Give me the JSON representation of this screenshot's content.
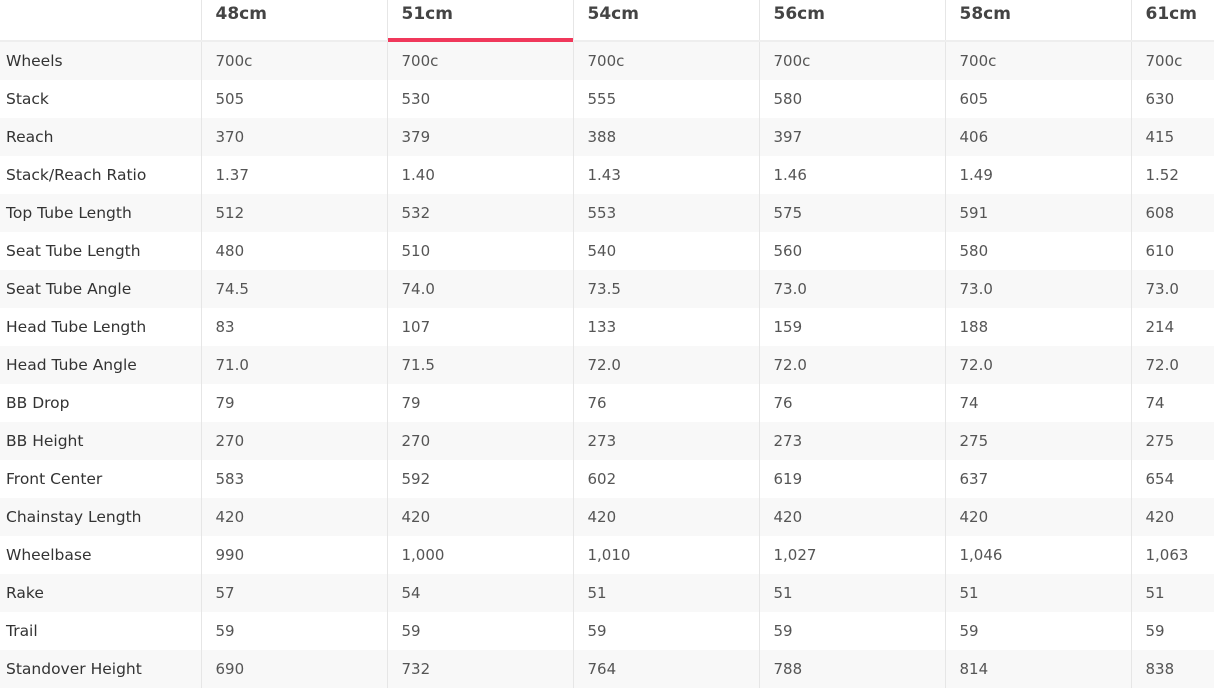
{
  "accent_color": "#f0385b",
  "selected_size": "51cm",
  "sizes": [
    "48cm",
    "51cm",
    "54cm",
    "56cm",
    "58cm",
    "61cm"
  ],
  "rows": [
    {
      "label": "Wheels",
      "values": [
        "700c",
        "700c",
        "700c",
        "700c",
        "700c",
        "700c"
      ]
    },
    {
      "label": "Stack",
      "values": [
        "505",
        "530",
        "555",
        "580",
        "605",
        "630"
      ]
    },
    {
      "label": "Reach",
      "values": [
        "370",
        "379",
        "388",
        "397",
        "406",
        "415"
      ]
    },
    {
      "label": "Stack/Reach Ratio",
      "values": [
        "1.37",
        "1.40",
        "1.43",
        "1.46",
        "1.49",
        "1.52"
      ]
    },
    {
      "label": "Top Tube Length",
      "values": [
        "512",
        "532",
        "553",
        "575",
        "591",
        "608"
      ]
    },
    {
      "label": "Seat Tube Length",
      "values": [
        "480",
        "510",
        "540",
        "560",
        "580",
        "610"
      ]
    },
    {
      "label": "Seat Tube Angle",
      "values": [
        "74.5",
        "74.0",
        "73.5",
        "73.0",
        "73.0",
        "73.0"
      ]
    },
    {
      "label": "Head Tube Length",
      "values": [
        "83",
        "107",
        "133",
        "159",
        "188",
        "214"
      ]
    },
    {
      "label": "Head Tube Angle",
      "values": [
        "71.0",
        "71.5",
        "72.0",
        "72.0",
        "72.0",
        "72.0"
      ]
    },
    {
      "label": "BB Drop",
      "values": [
        "79",
        "79",
        "76",
        "76",
        "74",
        "74"
      ]
    },
    {
      "label": "BB Height",
      "values": [
        "270",
        "270",
        "273",
        "273",
        "275",
        "275"
      ]
    },
    {
      "label": "Front Center",
      "values": [
        "583",
        "592",
        "602",
        "619",
        "637",
        "654"
      ]
    },
    {
      "label": "Chainstay Length",
      "values": [
        "420",
        "420",
        "420",
        "420",
        "420",
        "420"
      ]
    },
    {
      "label": "Wheelbase",
      "values": [
        "990",
        "1,000",
        "1,010",
        "1,027",
        "1,046",
        "1,063"
      ]
    },
    {
      "label": "Rake",
      "values": [
        "57",
        "54",
        "51",
        "51",
        "51",
        "51"
      ]
    },
    {
      "label": "Trail",
      "values": [
        "59",
        "59",
        "59",
        "59",
        "59",
        "59"
      ]
    },
    {
      "label": "Standover Height",
      "values": [
        "690",
        "732",
        "764",
        "788",
        "814",
        "838"
      ]
    }
  ]
}
